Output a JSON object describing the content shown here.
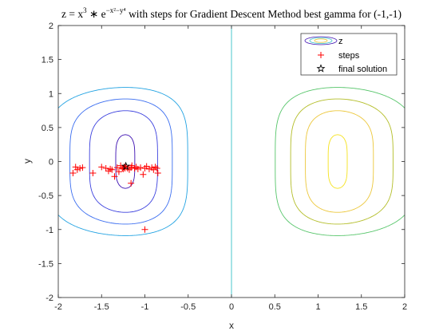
{
  "chart_data": {
    "type": "contour",
    "title": {
      "lead": "z = x",
      "exp1": "3",
      "mid": " ∗ e",
      "exp2": "−x²−y⁴",
      "tail": " with steps for Gradient Descent Method best gamma for (-1,-1)"
    },
    "xlabel": "x",
    "ylabel": "y",
    "xlim": [
      -2,
      2
    ],
    "ylim": [
      -2,
      2
    ],
    "xticks": [
      -2,
      -1.5,
      -1,
      -0.5,
      0,
      0.5,
      1,
      1.5,
      2
    ],
    "yticks": [
      -2,
      -1.5,
      -1,
      -0.5,
      0,
      0.5,
      1,
      1.5,
      2
    ],
    "xtick_labels": [
      "-2",
      "-1.5",
      "-1",
      "-0.5",
      "0",
      "0.5",
      "1",
      "1.5",
      "2"
    ],
    "ytick_labels": [
      "-2",
      "-1.5",
      "-1",
      "-0.5",
      "0",
      "0.5",
      "1",
      "1.5",
      "2"
    ],
    "contour_levels": [
      -0.4,
      -0.3,
      -0.2,
      -0.1,
      0,
      0.1,
      0.2,
      0.3,
      0.4
    ],
    "contour_colors": {
      "-0.4": "#3b0eb1",
      "-0.3": "#3b40de",
      "-0.2": "#3a6df0",
      "-0.1": "#21a2e2",
      "0": "#35c1c8",
      "0.1": "#56c56a",
      "0.2": "#b3bd27",
      "0.3": "#ecc73a",
      "0.4": "#f5e21c"
    },
    "steps": {
      "x": [
        -1.83,
        -1.8,
        -1.78,
        -1.75,
        -1.72,
        -1.6,
        -1.5,
        -1.45,
        -1.42,
        -1.38,
        -1.35,
        -1.32,
        -1.3,
        -1.28,
        -1.26,
        -1.25,
        -1.24,
        -1.23,
        -1.22,
        -1.2,
        -1.18,
        -1.16,
        -1.15,
        -1.12,
        -1.1,
        -1.08,
        -1.05,
        -1.02,
        -1.0,
        -0.98,
        -0.95,
        -0.92,
        -0.9,
        -0.88,
        -0.86,
        -0.85,
        -1.4,
        -1.16,
        -1.0
      ],
      "y": [
        -0.17,
        -0.08,
        -0.12,
        -0.1,
        -0.09,
        -0.17,
        -0.08,
        -0.1,
        -0.14,
        -0.12,
        -0.22,
        -0.09,
        -0.15,
        -0.06,
        -0.1,
        -0.11,
        -0.08,
        -0.1,
        -0.07,
        -0.1,
        -0.12,
        -0.09,
        -0.06,
        -0.1,
        -0.08,
        -0.11,
        -0.09,
        -0.19,
        -0.1,
        -0.07,
        -0.11,
        -0.09,
        -0.12,
        -0.08,
        -0.1,
        -0.17,
        -0.11,
        -0.32,
        -1.0
      ]
    },
    "final_solution": {
      "x": -1.22,
      "y": -0.07
    },
    "legend": {
      "position": "top-right",
      "entries": [
        "z",
        "steps",
        "final solution"
      ]
    },
    "grid": false
  }
}
